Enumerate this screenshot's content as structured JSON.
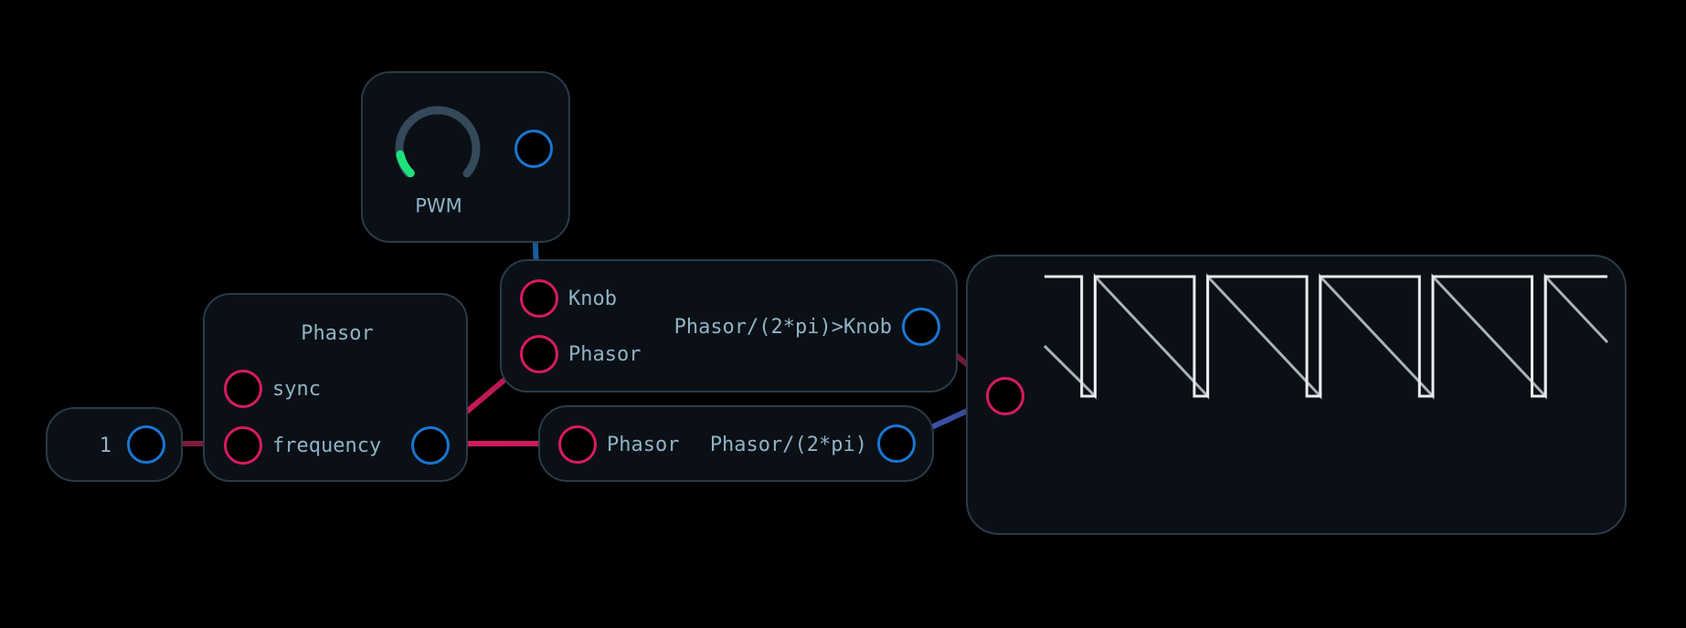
{
  "colors": {
    "background": "#000000",
    "node_fill": "#0b1016",
    "node_border": "#2b3b48",
    "input_port": "#d81b60",
    "output_port": "#1976d2",
    "label": "#8fb3c4",
    "knob_track": "#34495a",
    "knob_value": "#1de27a",
    "wave_square": "#e8ecee",
    "wave_saw": "#a9b2b8"
  },
  "nodes": {
    "constant": {
      "value": "1"
    },
    "phasor": {
      "title": "Phasor",
      "inputs": [
        "sync",
        "frequency"
      ]
    },
    "pwm_knob": {
      "label": "PWM",
      "value_fraction": 0.12
    },
    "compare": {
      "inputs": [
        "Knob",
        "Phasor"
      ],
      "output": "Phasor/(2*pi)>Knob"
    },
    "divide": {
      "input": "Phasor",
      "output": "Phasor/(2*pi)"
    },
    "scope": {
      "periods": 5.0,
      "phase_offset": 0.55,
      "duty": 0.12
    }
  }
}
